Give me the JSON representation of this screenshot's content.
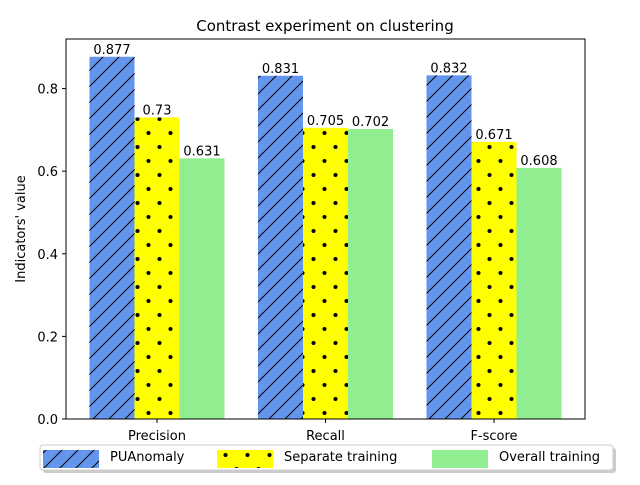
{
  "chart_data": {
    "type": "bar",
    "title": "Contrast experiment on clustering",
    "xlabel": "",
    "ylabel": "Indicators' value",
    "categories": [
      "Precision",
      "Recall",
      "F-score"
    ],
    "series": [
      {
        "name": "PUAnomaly",
        "values": [
          0.877,
          0.831,
          0.832
        ],
        "color": "#6495ED",
        "hatch": "diagonal"
      },
      {
        "name": "Separate training",
        "values": [
          0.73,
          0.705,
          0.671
        ],
        "color": "#FFFF00",
        "hatch": "dots"
      },
      {
        "name": "Overall training",
        "values": [
          0.631,
          0.702,
          0.608
        ],
        "color": "#90EE90",
        "hatch": "none"
      }
    ],
    "data_labels": [
      [
        "0.877",
        "0.831",
        "0.832"
      ],
      [
        "0.73",
        "0.705",
        "0.671"
      ],
      [
        "0.631",
        "0.702",
        "0.608"
      ]
    ],
    "ylim": [
      0,
      0.92
    ],
    "yticks": [
      "0.0",
      "0.2",
      "0.4",
      "0.6",
      "0.8"
    ],
    "ytick_values": [
      0,
      0.2,
      0.4,
      0.6,
      0.8
    ],
    "grid": false,
    "legend_position": "bottom-center"
  }
}
